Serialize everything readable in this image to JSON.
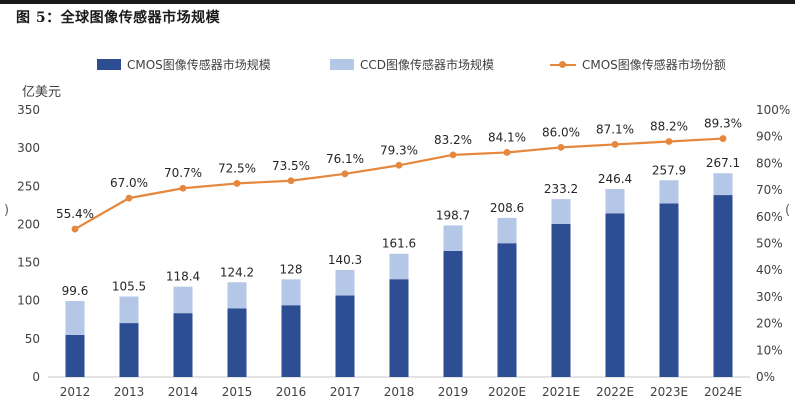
{
  "figure_title": "图 5：全球图像传感器市场规模",
  "colors": {
    "cmos": "#2E4E94",
    "ccd": "#B4C7E7",
    "share": "#E5873D"
  },
  "chart_data": {
    "type": "bar",
    "stacked": true,
    "title": "图 5：全球图像传感器市场规模",
    "ylabel": "亿美元",
    "ylim": [
      0,
      350
    ],
    "yticks": [
      0,
      50,
      100,
      150,
      200,
      250,
      300,
      350
    ],
    "y2lim": [
      0,
      100
    ],
    "y2ticks": [
      "0%",
      "10%",
      "20%",
      "30%",
      "40%",
      "50%",
      "60%",
      "70%",
      "80%",
      "90%",
      "100%"
    ],
    "categories": [
      "2012",
      "2013",
      "2014",
      "2015",
      "2016",
      "2017",
      "2018",
      "2019",
      "2020E",
      "2021E",
      "2022E",
      "2023E",
      "2024E"
    ],
    "series": [
      {
        "name": "CMOS图像传感器市场规模",
        "type": "bar",
        "values": [
          55.2,
          70.7,
          83.7,
          90.0,
          94.1,
          106.8,
          128.2,
          165.3,
          175.4,
          200.6,
          214.6,
          227.5,
          238.5
        ]
      },
      {
        "name": "CCD图像传感器市场规模",
        "type": "bar",
        "values": [
          44.4,
          34.8,
          34.7,
          34.2,
          33.9,
          33.5,
          33.4,
          33.4,
          33.2,
          32.6,
          31.8,
          30.4,
          28.6
        ]
      },
      {
        "name": "CMOS图像传感器市场份额",
        "type": "line",
        "axis": "right",
        "values": [
          55.4,
          67.0,
          70.7,
          72.5,
          73.5,
          76.1,
          79.3,
          83.2,
          84.1,
          86.0,
          87.1,
          88.2,
          89.3
        ],
        "labels": [
          "55.4%",
          "67.0%",
          "70.7%",
          "72.5%",
          "73.5%",
          "76.1%",
          "79.3%",
          "83.2%",
          "84.1%",
          "86.0%",
          "87.1%",
          "88.2%",
          "89.3%"
        ]
      }
    ],
    "total_labels": [
      "99.6",
      "105.5",
      "118.4",
      "124.2",
      "128",
      "140.3",
      "161.6",
      "198.7",
      "208.6",
      "233.2",
      "246.4",
      "257.9",
      "267.1"
    ],
    "legend_position": "top"
  }
}
